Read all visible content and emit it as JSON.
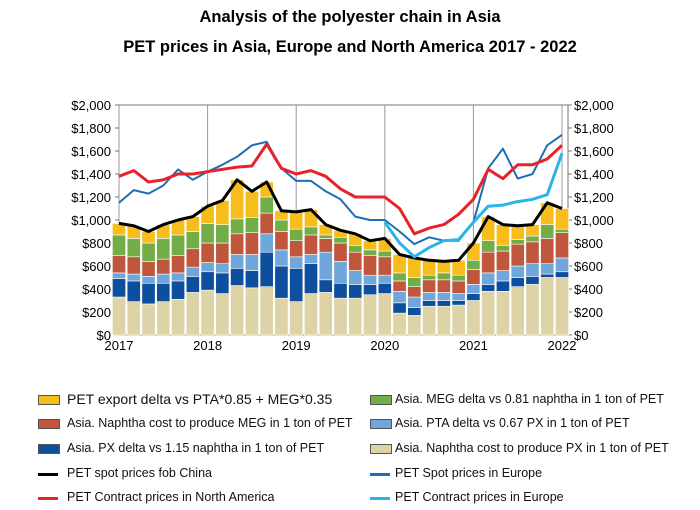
{
  "chart_data": {
    "type": "bar",
    "title": "Analysis of the polyester chain in Asia",
    "subtitle": "PET prices in Asia, Europe and North America 2017 - 2022",
    "xlabel": "",
    "ylabel": "",
    "ylim": [
      0,
      2000
    ],
    "y_ticks": [
      "$0",
      "$200",
      "$400",
      "$600",
      "$800",
      "$1,000",
      "$1,200",
      "$1,400",
      "$1,600",
      "$1,800",
      "$2,000"
    ],
    "x_ticks": [
      "2017",
      "2018",
      "2019",
      "2020",
      "2021",
      "2022"
    ],
    "grid": "vertical lines at year marks",
    "legend_placement": "bottom",
    "x": [
      "2017-01",
      "2017-03",
      "2017-05",
      "2017-07",
      "2017-09",
      "2017-11",
      "2018-01",
      "2018-03",
      "2018-05",
      "2018-07",
      "2018-09",
      "2018-11",
      "2019-01",
      "2019-03",
      "2019-05",
      "2019-07",
      "2019-09",
      "2019-11",
      "2020-01",
      "2020-03",
      "2020-05",
      "2020-07",
      "2020-09",
      "2020-11",
      "2021-01",
      "2021-03",
      "2021-05",
      "2021-07",
      "2021-09",
      "2021-11",
      "2022-01"
    ],
    "stacked_series": [
      {
        "name": "Asia. Naphtha cost to produce PX in 1 ton of PET",
        "color": "#ddd3a6",
        "values": [
          330,
          290,
          270,
          290,
          310,
          370,
          390,
          360,
          430,
          410,
          420,
          320,
          290,
          360,
          370,
          320,
          320,
          350,
          360,
          190,
          170,
          250,
          250,
          260,
          300,
          380,
          380,
          420,
          440,
          500,
          500
        ]
      },
      {
        "name": "Asia. PX delta vs 1.15 naphtha in 1 ton of PET",
        "color": "#0d4f9e",
        "values": [
          160,
          180,
          180,
          160,
          160,
          140,
          160,
          180,
          150,
          150,
          300,
          280,
          290,
          260,
          110,
          130,
          120,
          90,
          90,
          90,
          70,
          50,
          50,
          40,
          60,
          60,
          90,
          80,
          70,
          30,
          50
        ]
      },
      {
        "name": "Asia. PTA delta vs 0.67 PX in 1 ton of PET",
        "color": "#6fa6dc",
        "values": [
          50,
          60,
          60,
          80,
          70,
          80,
          80,
          80,
          120,
          140,
          160,
          140,
          100,
          80,
          240,
          190,
          120,
          80,
          70,
          100,
          90,
          70,
          70,
          60,
          80,
          100,
          90,
          100,
          110,
          90,
          120
        ]
      },
      {
        "name": "Asia. Naphtha cost to produce MEG in 1 ton of PET",
        "color": "#c0573c",
        "values": [
          150,
          150,
          130,
          130,
          150,
          160,
          170,
          180,
          180,
          190,
          180,
          160,
          140,
          170,
          120,
          160,
          160,
          170,
          160,
          90,
          90,
          110,
          110,
          110,
          130,
          180,
          170,
          190,
          190,
          220,
          220
        ]
      },
      {
        "name": "Asia. MEG delta vs 0.81 naphtha in 1 ton of PET",
        "color": "#72ad47",
        "values": [
          180,
          160,
          160,
          180,
          180,
          150,
          170,
          160,
          130,
          130,
          140,
          100,
          100,
          70,
          30,
          50,
          60,
          50,
          50,
          70,
          80,
          40,
          60,
          50,
          80,
          100,
          50,
          40,
          50,
          120,
          30
        ]
      },
      {
        "name": "PET export delta vs PTA*0.85 + MEG*0.35",
        "color": "#f6bd1c",
        "values": [
          100,
          110,
          100,
          120,
          130,
          130,
          150,
          210,
          340,
          230,
          130,
          80,
          150,
          150,
          90,
          60,
          100,
          80,
          110,
          160,
          170,
          130,
          100,
          130,
          150,
          210,
          180,
          120,
          100,
          190,
          180
        ]
      }
    ],
    "line_series": [
      {
        "name": "PET spot prices fob China",
        "color": "#000000",
        "values": [
          970,
          950,
          900,
          960,
          1000,
          1030,
          1120,
          1170,
          1350,
          1250,
          1330,
          1080,
          1070,
          1090,
          960,
          910,
          880,
          820,
          840,
          700,
          670,
          650,
          640,
          650,
          800,
          1030,
          960,
          950,
          960,
          1150,
          1100
        ]
      },
      {
        "name": "PET Spot prices in Europe",
        "color": "#1f6db3",
        "values": [
          1150,
          1260,
          1230,
          1300,
          1440,
          1350,
          1420,
          1480,
          1550,
          1650,
          1680,
          1450,
          1340,
          1340,
          1250,
          1180,
          1030,
          1000,
          1000,
          900,
          790,
          850,
          820,
          820,
          980,
          1450,
          1620,
          1360,
          1400,
          1650,
          1740
        ]
      },
      {
        "name": "PET Contract prices in North America",
        "color": "#e8222a",
        "values": [
          1380,
          1430,
          1330,
          1350,
          1400,
          1400,
          1420,
          1440,
          1460,
          1470,
          1660,
          1450,
          1400,
          1430,
          1380,
          1270,
          1200,
          1200,
          1200,
          1100,
          880,
          930,
          960,
          1050,
          1180,
          1440,
          1360,
          1480,
          1480,
          1530,
          1650
        ]
      },
      {
        "name": "PET Contract prices in Europe",
        "color": "#2cb4e6",
        "values": [
          null,
          null,
          null,
          null,
          null,
          null,
          null,
          null,
          null,
          null,
          null,
          null,
          null,
          null,
          null,
          null,
          null,
          null,
          980,
          800,
          680,
          760,
          820,
          830,
          980,
          1120,
          1130,
          1160,
          1180,
          1220,
          1580
        ]
      }
    ]
  },
  "legend": [
    {
      "label": "PET export delta vs PTA*0.85 + MEG*0.35",
      "kind": "box",
      "color": "#f6bd1c"
    },
    {
      "label": "Asia. MEG delta vs 0.81 naphtha in 1 ton of PET",
      "kind": "box",
      "color": "#72ad47"
    },
    {
      "label": "Asia. Naphtha cost to produce MEG in 1 ton of PET",
      "kind": "box",
      "color": "#c0573c"
    },
    {
      "label": "Asia. PTA delta vs 0.67 PX in 1 ton of PET",
      "kind": "box",
      "color": "#6fa6dc"
    },
    {
      "label": "Asia. PX delta vs 1.15 naphtha in 1 ton of PET",
      "kind": "box",
      "color": "#0d4f9e"
    },
    {
      "label": "Asia. Naphtha cost to produce PX in 1 ton of PET",
      "kind": "box",
      "color": "#ddd3a6"
    },
    {
      "label": "PET spot prices fob China",
      "kind": "line",
      "color": "#000000"
    },
    {
      "label": "PET Spot prices in Europe",
      "kind": "line",
      "color": "#1f6db3"
    },
    {
      "label": "PET Contract prices in North America",
      "kind": "line",
      "color": "#e8222a"
    },
    {
      "label": "PET Contract prices in Europe",
      "kind": "line",
      "color": "#2cb4e6"
    }
  ]
}
